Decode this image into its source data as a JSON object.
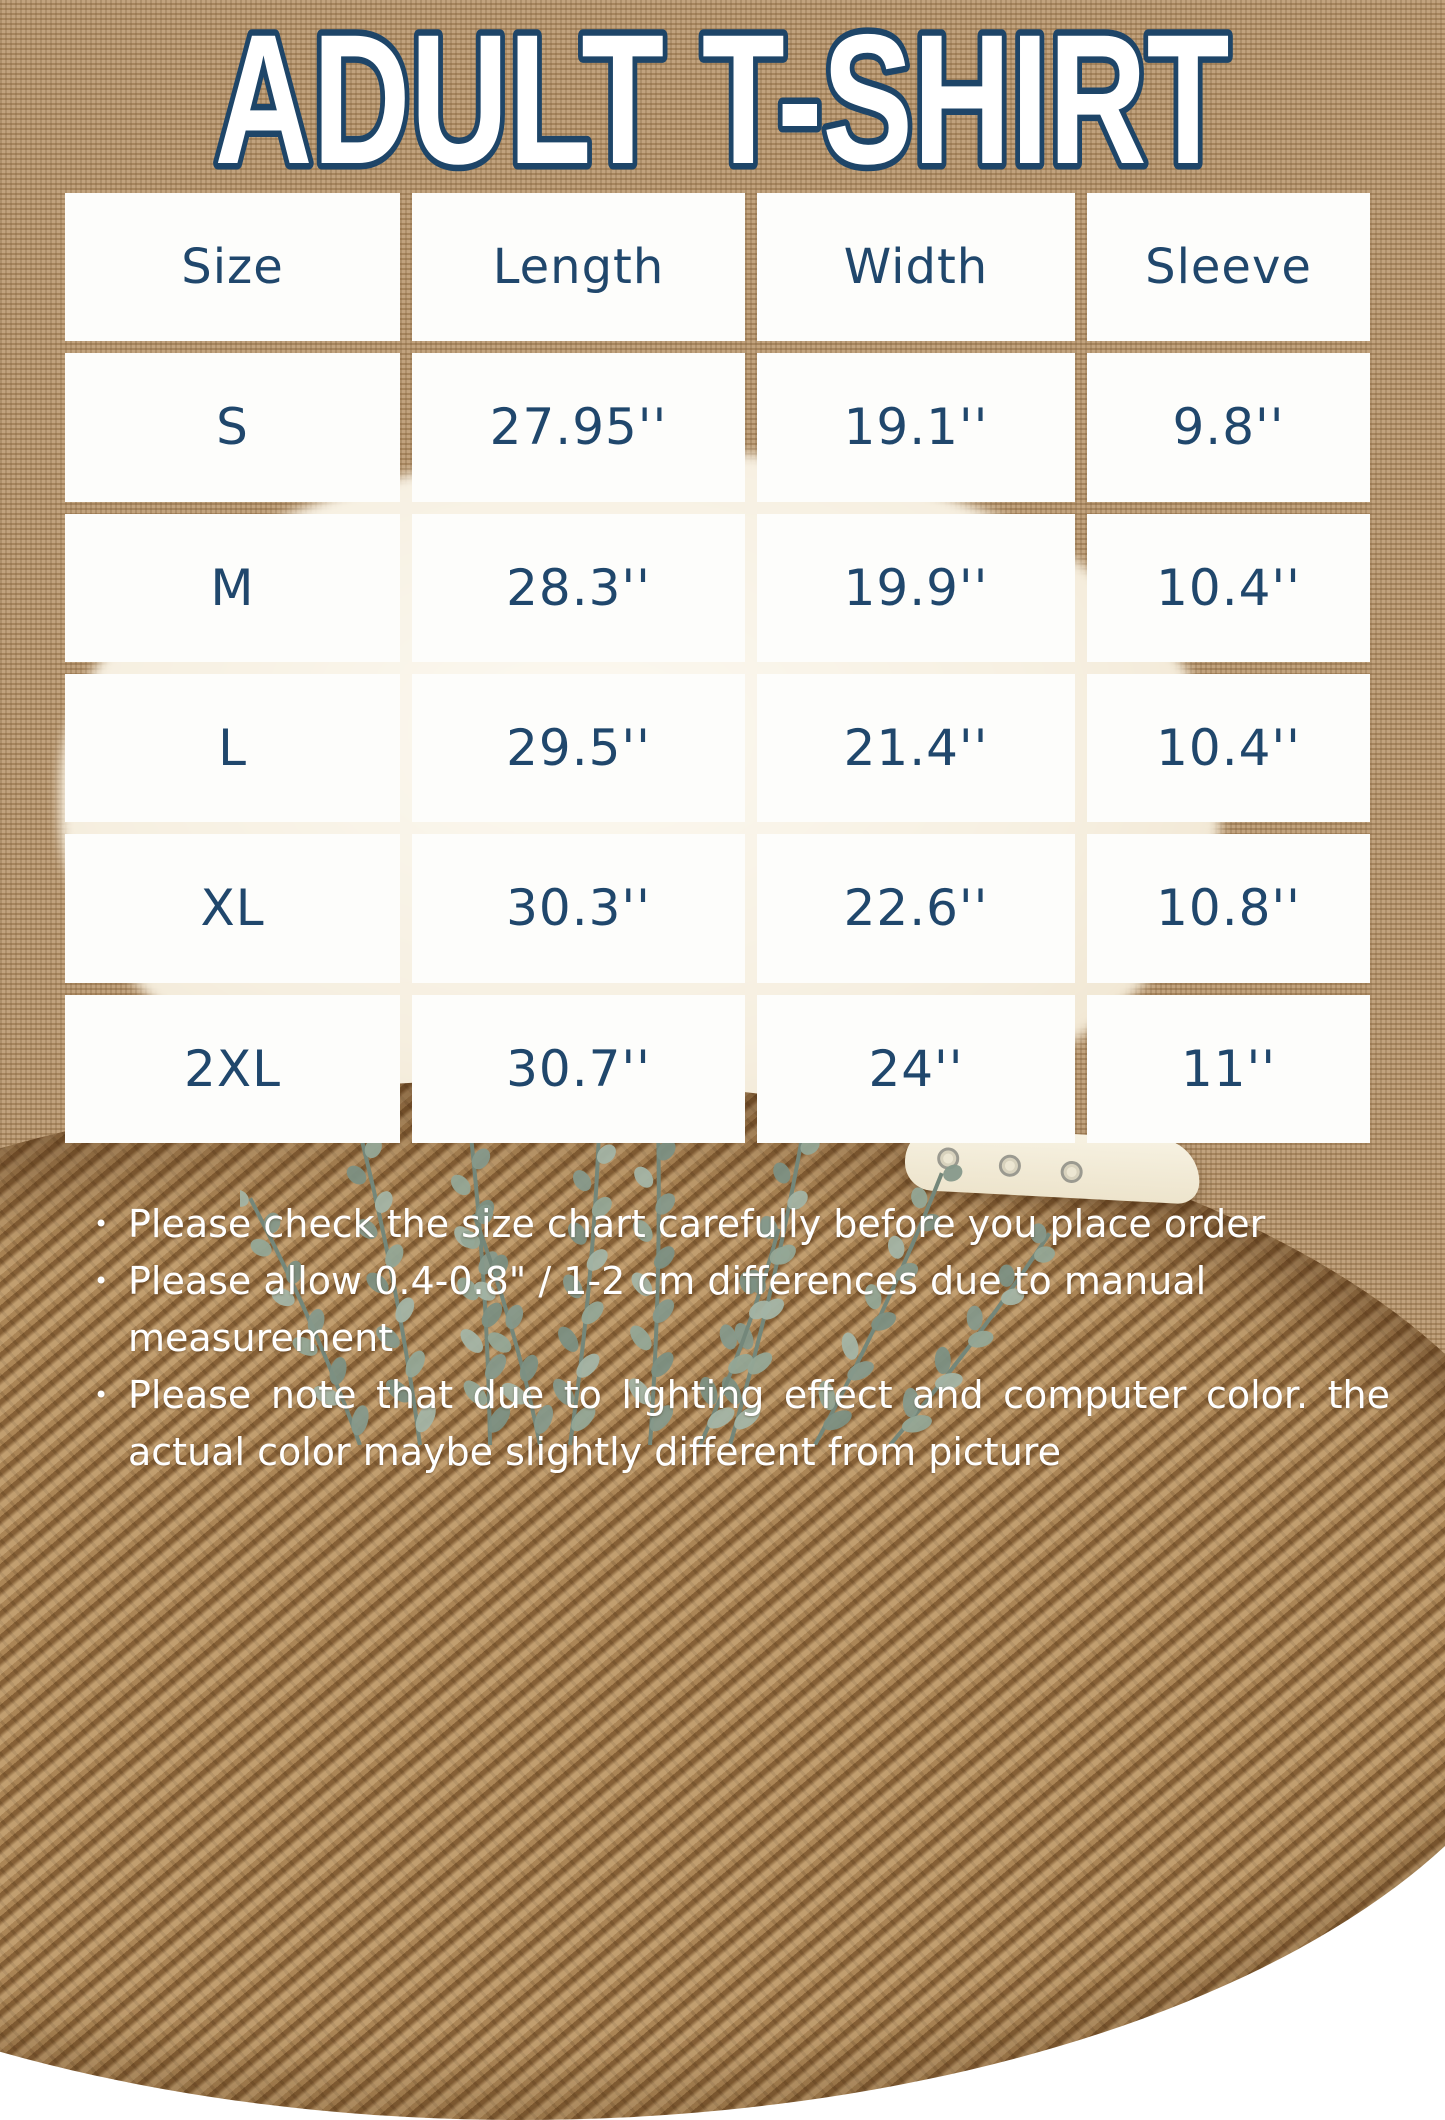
{
  "title": "ADULT T-SHIRT",
  "table": {
    "headers": [
      "Size",
      "Length",
      "Width",
      "Sleeve"
    ],
    "rows": [
      {
        "size": "S",
        "length": "27.95''",
        "width": "19.1''",
        "sleeve": "9.8''"
      },
      {
        "size": "M",
        "length": "28.3''",
        "width": "19.9''",
        "sleeve": "10.4''"
      },
      {
        "size": "L",
        "length": "29.5''",
        "width": "21.4''",
        "sleeve": "10.4''"
      },
      {
        "size": "XL",
        "length": "30.3''",
        "width": "22.6''",
        "sleeve": "10.8''"
      },
      {
        "size": "2XL",
        "length": "30.7''",
        "width": "24''",
        "sleeve": "11''"
      }
    ]
  },
  "notes": {
    "bullet": "•",
    "items": [
      "Please check the size chart carefully before you place order",
      "Please allow 0.4-0.8\" / 1-2 cm differences due to manual measurement",
      "Please note that due to lighting effect and computer color. the actual color maybe slightly different from picture"
    ]
  },
  "chart_data": {
    "type": "table",
    "title": "ADULT T-SHIRT",
    "columns": [
      "Size",
      "Length",
      "Width",
      "Sleeve"
    ],
    "rows": [
      [
        "S",
        "27.95''",
        "19.1''",
        "9.8''"
      ],
      [
        "M",
        "28.3''",
        "19.9''",
        "10.4''"
      ],
      [
        "L",
        "29.5''",
        "21.4''",
        "10.4''"
      ],
      [
        "XL",
        "30.3''",
        "22.6''",
        "10.8''"
      ],
      [
        "2XL",
        "30.7''",
        "24''",
        "11''"
      ]
    ],
    "units": "inches"
  },
  "colors": {
    "navy_text": "#20476c",
    "title_outline": "#1e4568",
    "title_fill": "#ffffff",
    "cell_background": "#fdfdfb",
    "burlap": "#b5936b",
    "woven_mat": "#9b7445",
    "notes_text": "#ffffff",
    "plant_green": "#8ea295"
  }
}
